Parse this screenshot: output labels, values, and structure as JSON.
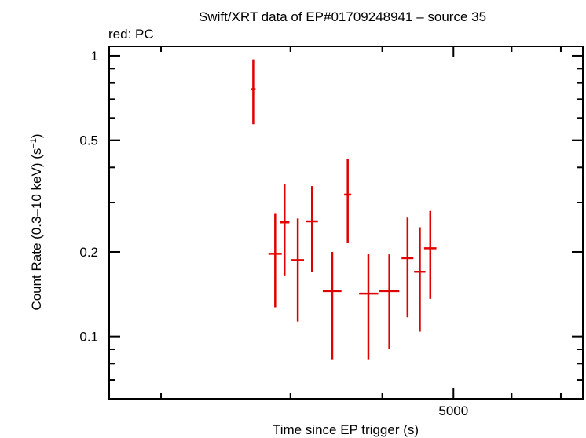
{
  "chart_data": {
    "type": "scatter",
    "title": "Swift/XRT data of EP#01709248941 – source 35",
    "subtitle": "red: PC",
    "xlabel": "Time since EP trigger (s)",
    "ylabel": "Count Rate (0.3–10 keV) (s",
    "ylabel_sup": "−1",
    "ylabel_end": ")",
    "x_scale": "log",
    "y_scale": "log",
    "xlim": [
      1700,
      7500
    ],
    "ylim": [
      0.06,
      1.08
    ],
    "x_ticks": [
      {
        "value": 5000,
        "label": "5000"
      }
    ],
    "x_minor_ticks": [
      2000,
      3000,
      4000,
      6000,
      7000
    ],
    "y_ticks": [
      {
        "value": 1,
        "label": "1"
      },
      {
        "value": 0.5,
        "label": "0.5"
      },
      {
        "value": 0.2,
        "label": "0.2"
      },
      {
        "value": 0.1,
        "label": "0.1"
      }
    ],
    "y_minor_ticks": [
      0.07,
      0.08,
      0.09,
      0.3,
      0.4,
      0.6,
      0.7,
      0.8,
      0.9
    ],
    "series": [
      {
        "name": "PC",
        "color": "#e00000",
        "points": [
          {
            "x": 2670,
            "xlo": 2650,
            "xhi": 2690,
            "y": 0.76,
            "ylo": 0.57,
            "yhi": 0.97
          },
          {
            "x": 2860,
            "xlo": 2800,
            "xhi": 2920,
            "y": 0.197,
            "ylo": 0.127,
            "yhi": 0.275
          },
          {
            "x": 2945,
            "xlo": 2905,
            "xhi": 2990,
            "y": 0.255,
            "ylo": 0.165,
            "yhi": 0.348
          },
          {
            "x": 3070,
            "xlo": 3010,
            "xhi": 3130,
            "y": 0.187,
            "ylo": 0.113,
            "yhi": 0.263
          },
          {
            "x": 3210,
            "xlo": 3150,
            "xhi": 3270,
            "y": 0.257,
            "ylo": 0.17,
            "yhi": 0.343
          },
          {
            "x": 3420,
            "xlo": 3320,
            "xhi": 3520,
            "y": 0.145,
            "ylo": 0.083,
            "yhi": 0.2
          },
          {
            "x": 3590,
            "xlo": 3550,
            "xhi": 3630,
            "y": 0.32,
            "ylo": 0.216,
            "yhi": 0.43
          },
          {
            "x": 3830,
            "xlo": 3720,
            "xhi": 3950,
            "y": 0.142,
            "ylo": 0.083,
            "yhi": 0.197
          },
          {
            "x": 4090,
            "xlo": 3960,
            "xhi": 4220,
            "y": 0.145,
            "ylo": 0.09,
            "yhi": 0.196
          },
          {
            "x": 4330,
            "xlo": 4250,
            "xhi": 4410,
            "y": 0.19,
            "ylo": 0.117,
            "yhi": 0.265
          },
          {
            "x": 4500,
            "xlo": 4420,
            "xhi": 4580,
            "y": 0.17,
            "ylo": 0.104,
            "yhi": 0.245
          },
          {
            "x": 4650,
            "xlo": 4560,
            "xhi": 4740,
            "y": 0.206,
            "ylo": 0.136,
            "yhi": 0.28
          }
        ]
      }
    ]
  }
}
